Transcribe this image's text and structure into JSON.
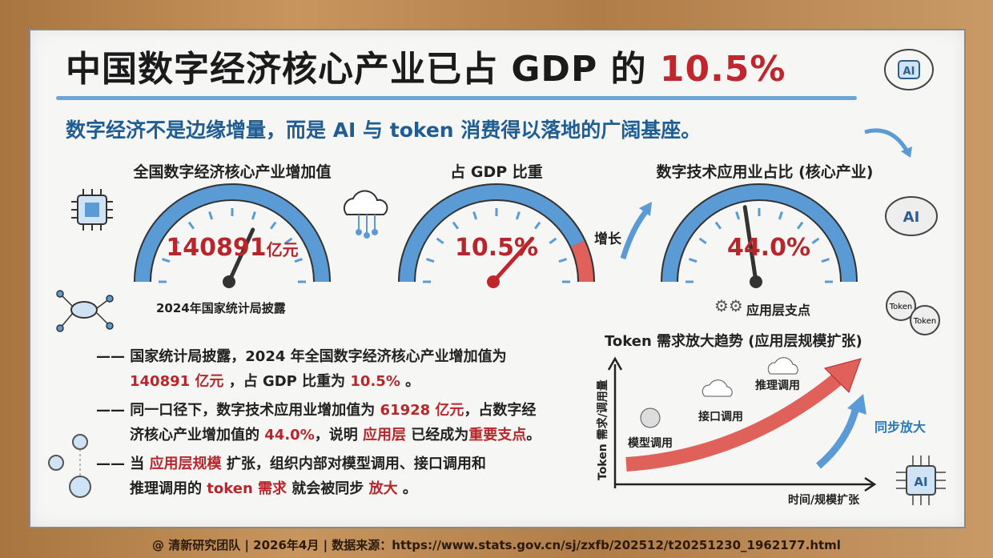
{
  "title": {
    "main": "中国数字经济核心产业已占 GDP 的 ",
    "highlight": "10.5%"
  },
  "subtitle": "数字经济不是边缘增量，而是 AI 与 token 消费得以落地的广阔基座。",
  "gauges": [
    {
      "title": "全国数字经济核心产业增加值",
      "value": "140891",
      "unit": "亿元",
      "caption": "2024年国家统计局披露"
    },
    {
      "title": "占 GDP 比重",
      "value": "10.5%",
      "percent": 10.5
    },
    {
      "title": "数字技术应用业占比 (核心产业)",
      "value": "44.0%",
      "percent": 44.0,
      "caption": "应用层支点"
    }
  ],
  "growth_label": "增长",
  "bullets": [
    {
      "lines": [
        [
          {
            "t": "国家统计局披露，2024 年全国数字经济核心产业增加值为"
          }
        ],
        [
          {
            "t": "140891 亿元",
            "r": true
          },
          {
            "t": " ，占 GDP 比重为 "
          },
          {
            "t": "10.5%",
            "r": true
          },
          {
            "t": " 。"
          }
        ]
      ]
    },
    {
      "lines": [
        [
          {
            "t": "同一口径下，数字技术应用业增加值为 "
          },
          {
            "t": "61928 亿元",
            "r": true
          },
          {
            "t": "，占数字经"
          }
        ],
        [
          {
            "t": "济核心产业增加值的 "
          },
          {
            "t": "44.0%",
            "r": true
          },
          {
            "t": "，说明 "
          },
          {
            "t": "应用层",
            "r": true
          },
          {
            "t": " 已经成为"
          },
          {
            "t": "重要支点",
            "r": true
          },
          {
            "t": "。"
          }
        ]
      ]
    },
    {
      "lines": [
        [
          {
            "t": "当 "
          },
          {
            "t": "应用层规模",
            "r": true
          },
          {
            "t": " 扩张，组织内部对模型调用、接口调用和"
          }
        ],
        [
          {
            "t": "推理调用的 "
          },
          {
            "t": "token 需求",
            "r": true
          },
          {
            "t": " 就会被同步 "
          },
          {
            "t": "放大",
            "r": true
          },
          {
            "t": " 。"
          }
        ]
      ]
    }
  ],
  "trend": {
    "title": "Token 需求放大趋势 (应用层规模扩张)",
    "ylabel": "Token 需求/调用量",
    "xlabel": "时间/规模扩张",
    "stages": [
      "模型调用",
      "接口调用",
      "推理调用"
    ],
    "sync_label": "同步放大"
  },
  "icons": {
    "ai_chip": "AI",
    "token": "Token"
  },
  "footer": "@ 清新研究团队 | 2026年4月 | 数据来源：https://www.stats.gov.cn/sj/zxfb/202512/t20251230_1962177.html",
  "colors": {
    "accent_red": "#b8262c",
    "accent_blue": "#1f5d93",
    "gauge_blue": "#5b9bd5"
  }
}
